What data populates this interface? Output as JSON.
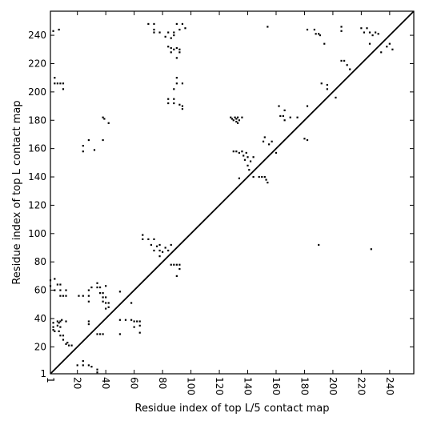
{
  "chart_data": {
    "type": "scatter",
    "title": "",
    "xlabel": "Residue index of top L/5 contact map",
    "ylabel": "Residue index of top L contact map",
    "xlim": [
      1,
      257
    ],
    "ylim": [
      1,
      257
    ],
    "xticks": [
      1,
      20,
      40,
      60,
      80,
      100,
      120,
      140,
      160,
      180,
      200,
      220,
      240
    ],
    "yticks": [
      1,
      20,
      40,
      60,
      80,
      100,
      120,
      140,
      160,
      180,
      200,
      220,
      240
    ],
    "grid": false,
    "diagonal": true,
    "upper_series": {
      "name": "",
      "points": [
        [
          3,
          243
        ],
        [
          7,
          244
        ],
        [
          4,
          210
        ],
        [
          4,
          206
        ],
        [
          6,
          206
        ],
        [
          8,
          206
        ],
        [
          10,
          206
        ],
        [
          10,
          202
        ],
        [
          24,
          162
        ],
        [
          24,
          158
        ],
        [
          28,
          166
        ],
        [
          32,
          159
        ],
        [
          38,
          182
        ],
        [
          39,
          181
        ],
        [
          38,
          166
        ],
        [
          42,
          178
        ],
        [
          70,
          248
        ],
        [
          74,
          248
        ],
        [
          74,
          244
        ],
        [
          74,
          242
        ],
        [
          78,
          242
        ],
        [
          82,
          239
        ],
        [
          84,
          242
        ],
        [
          86,
          238
        ],
        [
          88,
          242
        ],
        [
          88,
          240
        ],
        [
          90,
          248
        ],
        [
          92,
          244
        ],
        [
          94,
          248
        ],
        [
          96,
          245
        ],
        [
          84,
          232
        ],
        [
          86,
          231
        ],
        [
          88,
          230
        ],
        [
          90,
          231
        ],
        [
          92,
          230
        ],
        [
          92,
          228
        ],
        [
          86,
          228
        ],
        [
          90,
          224
        ],
        [
          90,
          210
        ],
        [
          90,
          206
        ],
        [
          88,
          202
        ],
        [
          94,
          206
        ],
        [
          84,
          195
        ],
        [
          88,
          195
        ],
        [
          84,
          192
        ],
        [
          88,
          192
        ],
        [
          92,
          191
        ],
        [
          94,
          190
        ],
        [
          94,
          188
        ],
        [
          128,
          182
        ],
        [
          129,
          181
        ],
        [
          130,
          180
        ],
        [
          131,
          182
        ],
        [
          132,
          181
        ],
        [
          132,
          179
        ],
        [
          133,
          178
        ],
        [
          133,
          182
        ],
        [
          134,
          180
        ],
        [
          136,
          182
        ],
        [
          130,
          158
        ],
        [
          132,
          158
        ],
        [
          134,
          157
        ],
        [
          136,
          158
        ],
        [
          137,
          155
        ],
        [
          139,
          157
        ],
        [
          140,
          154
        ],
        [
          138,
          152
        ],
        [
          140,
          148
        ],
        [
          142,
          151
        ],
        [
          141,
          145
        ],
        [
          144,
          154
        ],
        [
          144,
          140
        ],
        [
          148,
          140
        ],
        [
          150,
          140
        ],
        [
          152,
          140
        ],
        [
          153,
          138
        ],
        [
          154,
          136
        ],
        [
          151,
          165
        ],
        [
          152,
          168
        ],
        [
          155,
          163
        ],
        [
          157,
          165
        ],
        [
          154,
          246
        ],
        [
          162,
          190
        ],
        [
          163,
          183
        ],
        [
          165,
          183
        ],
        [
          166,
          187
        ],
        [
          166,
          180
        ],
        [
          170,
          182
        ],
        [
          175,
          182
        ],
        [
          180,
          167
        ],
        [
          182,
          166
        ],
        [
          182,
          190
        ],
        [
          182,
          244
        ],
        [
          187,
          244
        ],
        [
          188,
          241
        ],
        [
          190,
          241
        ],
        [
          191,
          240
        ],
        [
          192,
          206
        ],
        [
          194,
          234
        ],
        [
          196,
          202
        ],
        [
          196,
          205
        ],
        [
          202,
          196
        ],
        [
          206,
          246
        ],
        [
          206,
          243
        ],
        [
          206,
          222
        ],
        [
          208,
          222
        ],
        [
          210,
          219
        ],
        [
          212,
          216
        ],
        [
          220,
          245
        ],
        [
          222,
          242
        ],
        [
          224,
          245
        ],
        [
          226,
          242
        ],
        [
          228,
          240
        ],
        [
          226,
          234
        ],
        [
          230,
          242
        ],
        [
          232,
          241
        ],
        [
          234,
          228
        ],
        [
          238,
          232
        ],
        [
          240,
          234
        ],
        [
          242,
          230
        ],
        [
          160,
          157
        ],
        [
          134,
          139
        ]
      ]
    },
    "lower_series": {
      "name": "",
      "points": [
        [
          1,
          67
        ],
        [
          1,
          63
        ],
        [
          4,
          68
        ],
        [
          6,
          64
        ],
        [
          8,
          64
        ],
        [
          8,
          60
        ],
        [
          4,
          60
        ],
        [
          8,
          56
        ],
        [
          10,
          56
        ],
        [
          12,
          56
        ],
        [
          12,
          60
        ],
        [
          3,
          37
        ],
        [
          3,
          34
        ],
        [
          3,
          32
        ],
        [
          4,
          31
        ],
        [
          6,
          38
        ],
        [
          7,
          37
        ],
        [
          8,
          38
        ],
        [
          9,
          39
        ],
        [
          6,
          35
        ],
        [
          8,
          34
        ],
        [
          7,
          31
        ],
        [
          8,
          28
        ],
        [
          10,
          28
        ],
        [
          10,
          25
        ],
        [
          12,
          22
        ],
        [
          13,
          23
        ],
        [
          14,
          21
        ],
        [
          16,
          21
        ],
        [
          12,
          38
        ],
        [
          21,
          56
        ],
        [
          24,
          56
        ],
        [
          28,
          56
        ],
        [
          28,
          60
        ],
        [
          30,
          62
        ],
        [
          28,
          52
        ],
        [
          28,
          38
        ],
        [
          28,
          36
        ],
        [
          24,
          10
        ],
        [
          24,
          7
        ],
        [
          28,
          7
        ],
        [
          34,
          65
        ],
        [
          34,
          62
        ],
        [
          36,
          62
        ],
        [
          36,
          58
        ],
        [
          38,
          58
        ],
        [
          40,
          63
        ],
        [
          38,
          55
        ],
        [
          40,
          55
        ],
        [
          40,
          51
        ],
        [
          42,
          51
        ],
        [
          42,
          48
        ],
        [
          40,
          47
        ],
        [
          38,
          52
        ],
        [
          34,
          29
        ],
        [
          36,
          29
        ],
        [
          38,
          29
        ],
        [
          50,
          59
        ],
        [
          50,
          39
        ],
        [
          50,
          29
        ],
        [
          54,
          39
        ],
        [
          58,
          39
        ],
        [
          60,
          38
        ],
        [
          58,
          51
        ],
        [
          60,
          34
        ],
        [
          62,
          38
        ],
        [
          64,
          38
        ],
        [
          64,
          35
        ],
        [
          64,
          30
        ],
        [
          66,
          99
        ],
        [
          66,
          96
        ],
        [
          70,
          96
        ],
        [
          74,
          96
        ],
        [
          72,
          92
        ],
        [
          74,
          88
        ],
        [
          76,
          91
        ],
        [
          78,
          92
        ],
        [
          78,
          88
        ],
        [
          80,
          87
        ],
        [
          82,
          90
        ],
        [
          78,
          84
        ],
        [
          84,
          88
        ],
        [
          86,
          92
        ],
        [
          86,
          78
        ],
        [
          88,
          78
        ],
        [
          90,
          78
        ],
        [
          92,
          78
        ],
        [
          92,
          75
        ],
        [
          90,
          70
        ],
        [
          190,
          92
        ],
        [
          227,
          89
        ],
        [
          34,
          4
        ],
        [
          34,
          2
        ],
        [
          30,
          6
        ],
        [
          20,
          7
        ]
      ]
    }
  }
}
